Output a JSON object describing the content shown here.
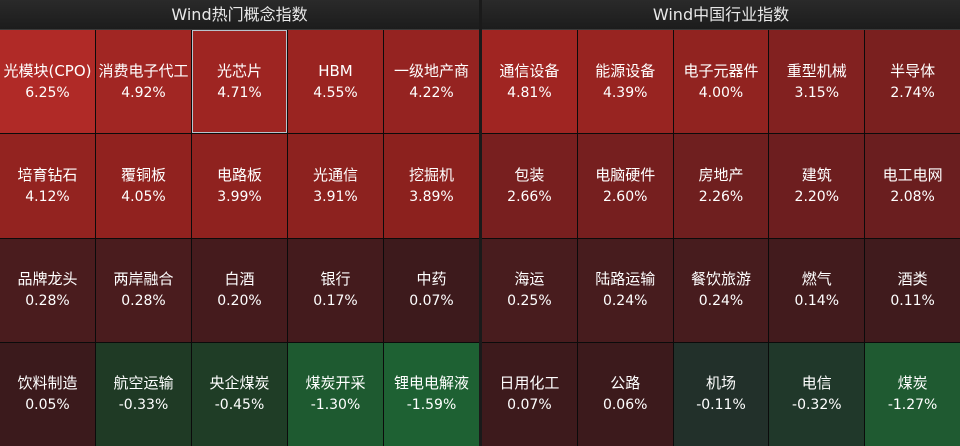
{
  "panels": [
    {
      "title": "Wind热门概念指数",
      "tiles": [
        {
          "name": "光模块(CPO)",
          "pct": "6.25%",
          "color": "#b02a27"
        },
        {
          "name": "消费电子代工",
          "pct": "4.92%",
          "color": "#a12623"
        },
        {
          "name": "光芯片",
          "pct": "4.71%",
          "color": "#9e2522",
          "selected": true
        },
        {
          "name": "HBM",
          "pct": "4.55%",
          "color": "#9a2421"
        },
        {
          "name": "一级地产商",
          "pct": "4.22%",
          "color": "#952321"
        },
        {
          "name": "培育钻石",
          "pct": "4.12%",
          "color": "#932320"
        },
        {
          "name": "覆铜板",
          "pct": "4.05%",
          "color": "#91221f"
        },
        {
          "name": "电路板",
          "pct": "3.99%",
          "color": "#8f221f"
        },
        {
          "name": "光通信",
          "pct": "3.91%",
          "color": "#8d221f"
        },
        {
          "name": "挖掘机",
          "pct": "3.89%",
          "color": "#8c211e"
        },
        {
          "name": "品牌龙头",
          "pct": "0.28%",
          "color": "#4a1c1e"
        },
        {
          "name": "两岸融合",
          "pct": "0.28%",
          "color": "#4a1c1e"
        },
        {
          "name": "白酒",
          "pct": "0.20%",
          "color": "#451b1d"
        },
        {
          "name": "银行",
          "pct": "0.17%",
          "color": "#441b1d"
        },
        {
          "name": "中药",
          "pct": "0.07%",
          "color": "#3d1a1c"
        },
        {
          "name": "饮料制造",
          "pct": "0.05%",
          "color": "#3b1a1c"
        },
        {
          "name": "航空运输",
          "pct": "-0.33%",
          "color": "#1f3a25"
        },
        {
          "name": "央企煤炭",
          "pct": "-0.45%",
          "color": "#1f3d26"
        },
        {
          "name": "煤炭开采",
          "pct": "-1.30%",
          "color": "#1e5a30"
        },
        {
          "name": "锂电电解液",
          "pct": "-1.59%",
          "color": "#1e6133"
        }
      ]
    },
    {
      "title": "Wind中国行业指数",
      "tiles": [
        {
          "name": "通信设备",
          "pct": "4.81%",
          "color": "#a02522"
        },
        {
          "name": "能源设备",
          "pct": "4.39%",
          "color": "#982421"
        },
        {
          "name": "电子元器件",
          "pct": "4.00%",
          "color": "#912320"
        },
        {
          "name": "重型机械",
          "pct": "3.15%",
          "color": "#822120"
        },
        {
          "name": "半导体",
          "pct": "2.74%",
          "color": "#7a201f"
        },
        {
          "name": "包装",
          "pct": "2.66%",
          "color": "#781f1f"
        },
        {
          "name": "电脑硬件",
          "pct": "2.60%",
          "color": "#761f1f"
        },
        {
          "name": "房地产",
          "pct": "2.26%",
          "color": "#6f1f1f"
        },
        {
          "name": "建筑",
          "pct": "2.20%",
          "color": "#6d1e1f"
        },
        {
          "name": "电工电网",
          "pct": "2.08%",
          "color": "#6a1e1f"
        },
        {
          "name": "海运",
          "pct": "0.25%",
          "color": "#481c1e"
        },
        {
          "name": "陆路运输",
          "pct": "0.24%",
          "color": "#471c1e"
        },
        {
          "name": "餐饮旅游",
          "pct": "0.24%",
          "color": "#471c1e"
        },
        {
          "name": "燃气",
          "pct": "0.14%",
          "color": "#421b1d"
        },
        {
          "name": "酒类",
          "pct": "0.11%",
          "color": "#401b1d"
        },
        {
          "name": "日用化工",
          "pct": "0.07%",
          "color": "#3d1a1c"
        },
        {
          "name": "公路",
          "pct": "0.06%",
          "color": "#3c1a1c"
        },
        {
          "name": "机场",
          "pct": "-0.11%",
          "color": "#22302a"
        },
        {
          "name": "电信",
          "pct": "-0.32%",
          "color": "#20382a"
        },
        {
          "name": "煤炭",
          "pct": "-1.27%",
          "color": "#1f5a31"
        }
      ]
    }
  ]
}
